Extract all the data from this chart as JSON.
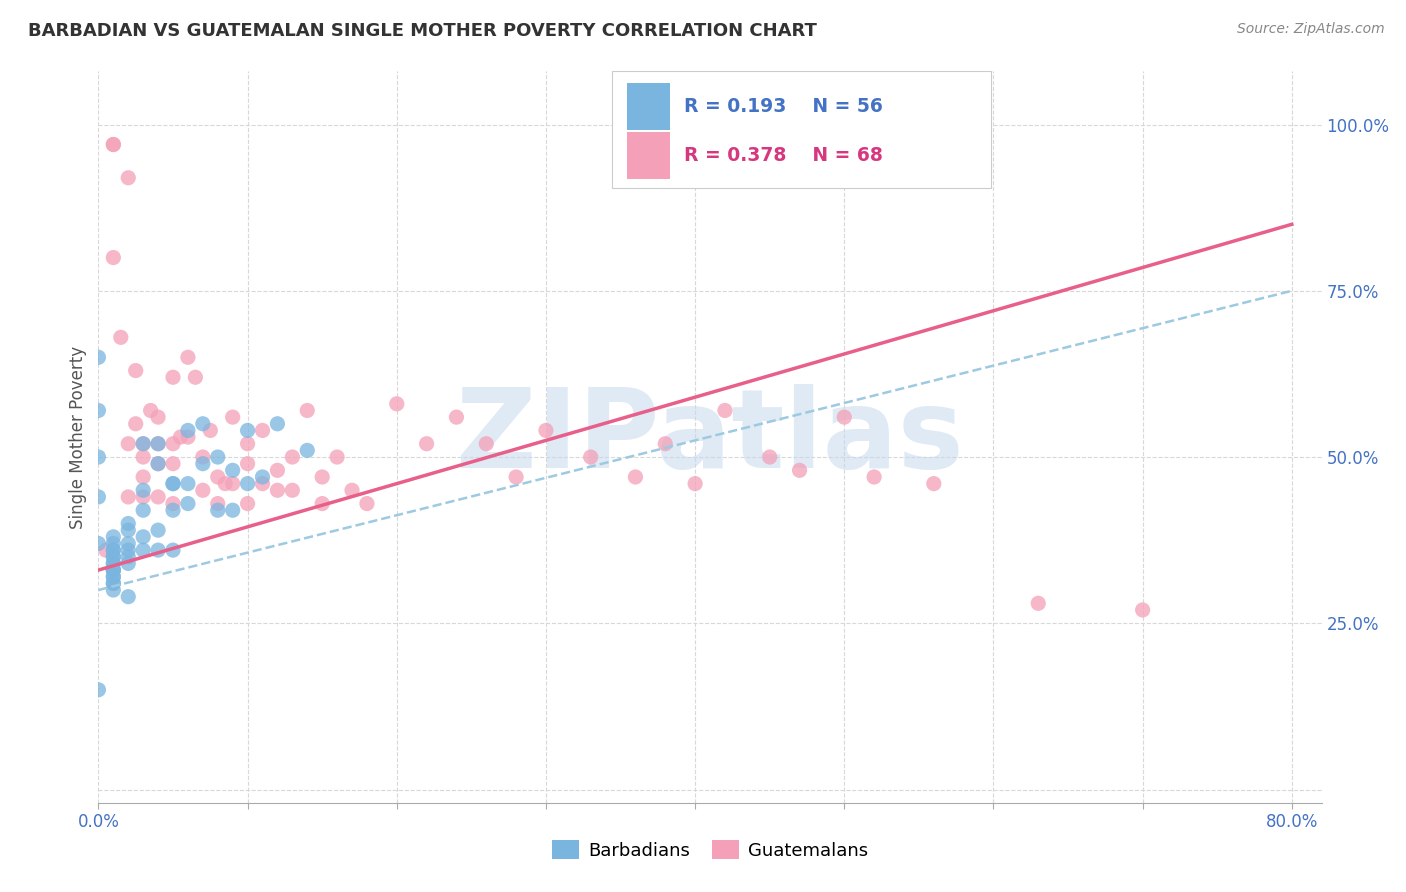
{
  "title": "BARBADIAN VS GUATEMALAN SINGLE MOTHER POVERTY CORRELATION CHART",
  "source": "Source: ZipAtlas.com",
  "ylabel": "Single Mother Poverty",
  "xlim": [
    0.0,
    0.82
  ],
  "ylim": [
    -0.02,
    1.08
  ],
  "xticks": [
    0.0,
    0.1,
    0.2,
    0.3,
    0.4,
    0.5,
    0.6,
    0.7,
    0.8
  ],
  "xticklabels": [
    "0.0%",
    "",
    "",
    "",
    "",
    "",
    "",
    "",
    "80.0%"
  ],
  "yticks_right": [
    0.0,
    0.25,
    0.5,
    0.75,
    1.0
  ],
  "yticklabels_right": [
    "",
    "25.0%",
    "50.0%",
    "75.0%",
    "100.0%"
  ],
  "watermark": "ZIPatlas",
  "legend_R_blue": "0.193",
  "legend_N_blue": "56",
  "legend_R_pink": "0.378",
  "legend_N_pink": "68",
  "blue_color": "#7ab5e0",
  "pink_color": "#f4a0b8",
  "blue_line_color": "#9ecae1",
  "pink_line_color": "#e8608a",
  "label_color_blue": "#4472c4",
  "label_color_pink": "#d63880",
  "barbadians_label": "Barbadians",
  "guatemalans_label": "Guatemalans",
  "background_color": "#ffffff",
  "grid_color": "#d8d8d8",
  "blue_points_x": [
    0.0,
    0.0,
    0.0,
    0.0,
    0.0,
    0.0,
    0.01,
    0.01,
    0.01,
    0.01,
    0.01,
    0.01,
    0.01,
    0.01,
    0.01,
    0.01,
    0.01,
    0.01,
    0.01,
    0.01,
    0.01,
    0.01,
    0.02,
    0.02,
    0.02,
    0.02,
    0.02,
    0.02,
    0.02,
    0.03,
    0.03,
    0.03,
    0.03,
    0.03,
    0.04,
    0.04,
    0.04,
    0.04,
    0.05,
    0.05,
    0.05,
    0.05,
    0.06,
    0.06,
    0.06,
    0.07,
    0.07,
    0.08,
    0.08,
    0.09,
    0.09,
    0.1,
    0.1,
    0.11,
    0.12,
    0.14
  ],
  "blue_points_y": [
    0.65,
    0.57,
    0.5,
    0.44,
    0.37,
    0.15,
    0.38,
    0.37,
    0.36,
    0.36,
    0.35,
    0.35,
    0.34,
    0.34,
    0.33,
    0.33,
    0.33,
    0.32,
    0.32,
    0.31,
    0.31,
    0.3,
    0.4,
    0.39,
    0.37,
    0.36,
    0.35,
    0.34,
    0.29,
    0.52,
    0.45,
    0.42,
    0.38,
    0.36,
    0.52,
    0.49,
    0.39,
    0.36,
    0.46,
    0.46,
    0.42,
    0.36,
    0.54,
    0.46,
    0.43,
    0.55,
    0.49,
    0.5,
    0.42,
    0.48,
    0.42,
    0.54,
    0.46,
    0.47,
    0.55,
    0.51
  ],
  "pink_points_x": [
    0.005,
    0.01,
    0.01,
    0.01,
    0.015,
    0.02,
    0.02,
    0.02,
    0.025,
    0.025,
    0.03,
    0.03,
    0.03,
    0.03,
    0.035,
    0.04,
    0.04,
    0.04,
    0.04,
    0.05,
    0.05,
    0.05,
    0.05,
    0.055,
    0.06,
    0.06,
    0.065,
    0.07,
    0.07,
    0.075,
    0.08,
    0.08,
    0.085,
    0.09,
    0.09,
    0.1,
    0.1,
    0.1,
    0.11,
    0.11,
    0.12,
    0.12,
    0.13,
    0.13,
    0.14,
    0.15,
    0.15,
    0.16,
    0.17,
    0.18,
    0.2,
    0.22,
    0.24,
    0.26,
    0.28,
    0.3,
    0.33,
    0.36,
    0.38,
    0.4,
    0.42,
    0.45,
    0.47,
    0.5,
    0.52,
    0.56,
    0.63,
    0.7
  ],
  "pink_points_y": [
    0.36,
    0.97,
    0.97,
    0.8,
    0.68,
    0.92,
    0.52,
    0.44,
    0.63,
    0.55,
    0.52,
    0.5,
    0.47,
    0.44,
    0.57,
    0.56,
    0.52,
    0.49,
    0.44,
    0.62,
    0.52,
    0.49,
    0.43,
    0.53,
    0.65,
    0.53,
    0.62,
    0.5,
    0.45,
    0.54,
    0.47,
    0.43,
    0.46,
    0.56,
    0.46,
    0.52,
    0.49,
    0.43,
    0.54,
    0.46,
    0.48,
    0.45,
    0.5,
    0.45,
    0.57,
    0.47,
    0.43,
    0.5,
    0.45,
    0.43,
    0.58,
    0.52,
    0.56,
    0.52,
    0.47,
    0.54,
    0.5,
    0.47,
    0.52,
    0.46,
    0.57,
    0.5,
    0.48,
    0.56,
    0.47,
    0.46,
    0.28,
    0.27
  ],
  "blue_trend_x": [
    0.0,
    0.8
  ],
  "blue_trend_y": [
    0.3,
    0.75
  ],
  "pink_trend_x": [
    0.0,
    0.8
  ],
  "pink_trend_y": [
    0.33,
    0.85
  ]
}
